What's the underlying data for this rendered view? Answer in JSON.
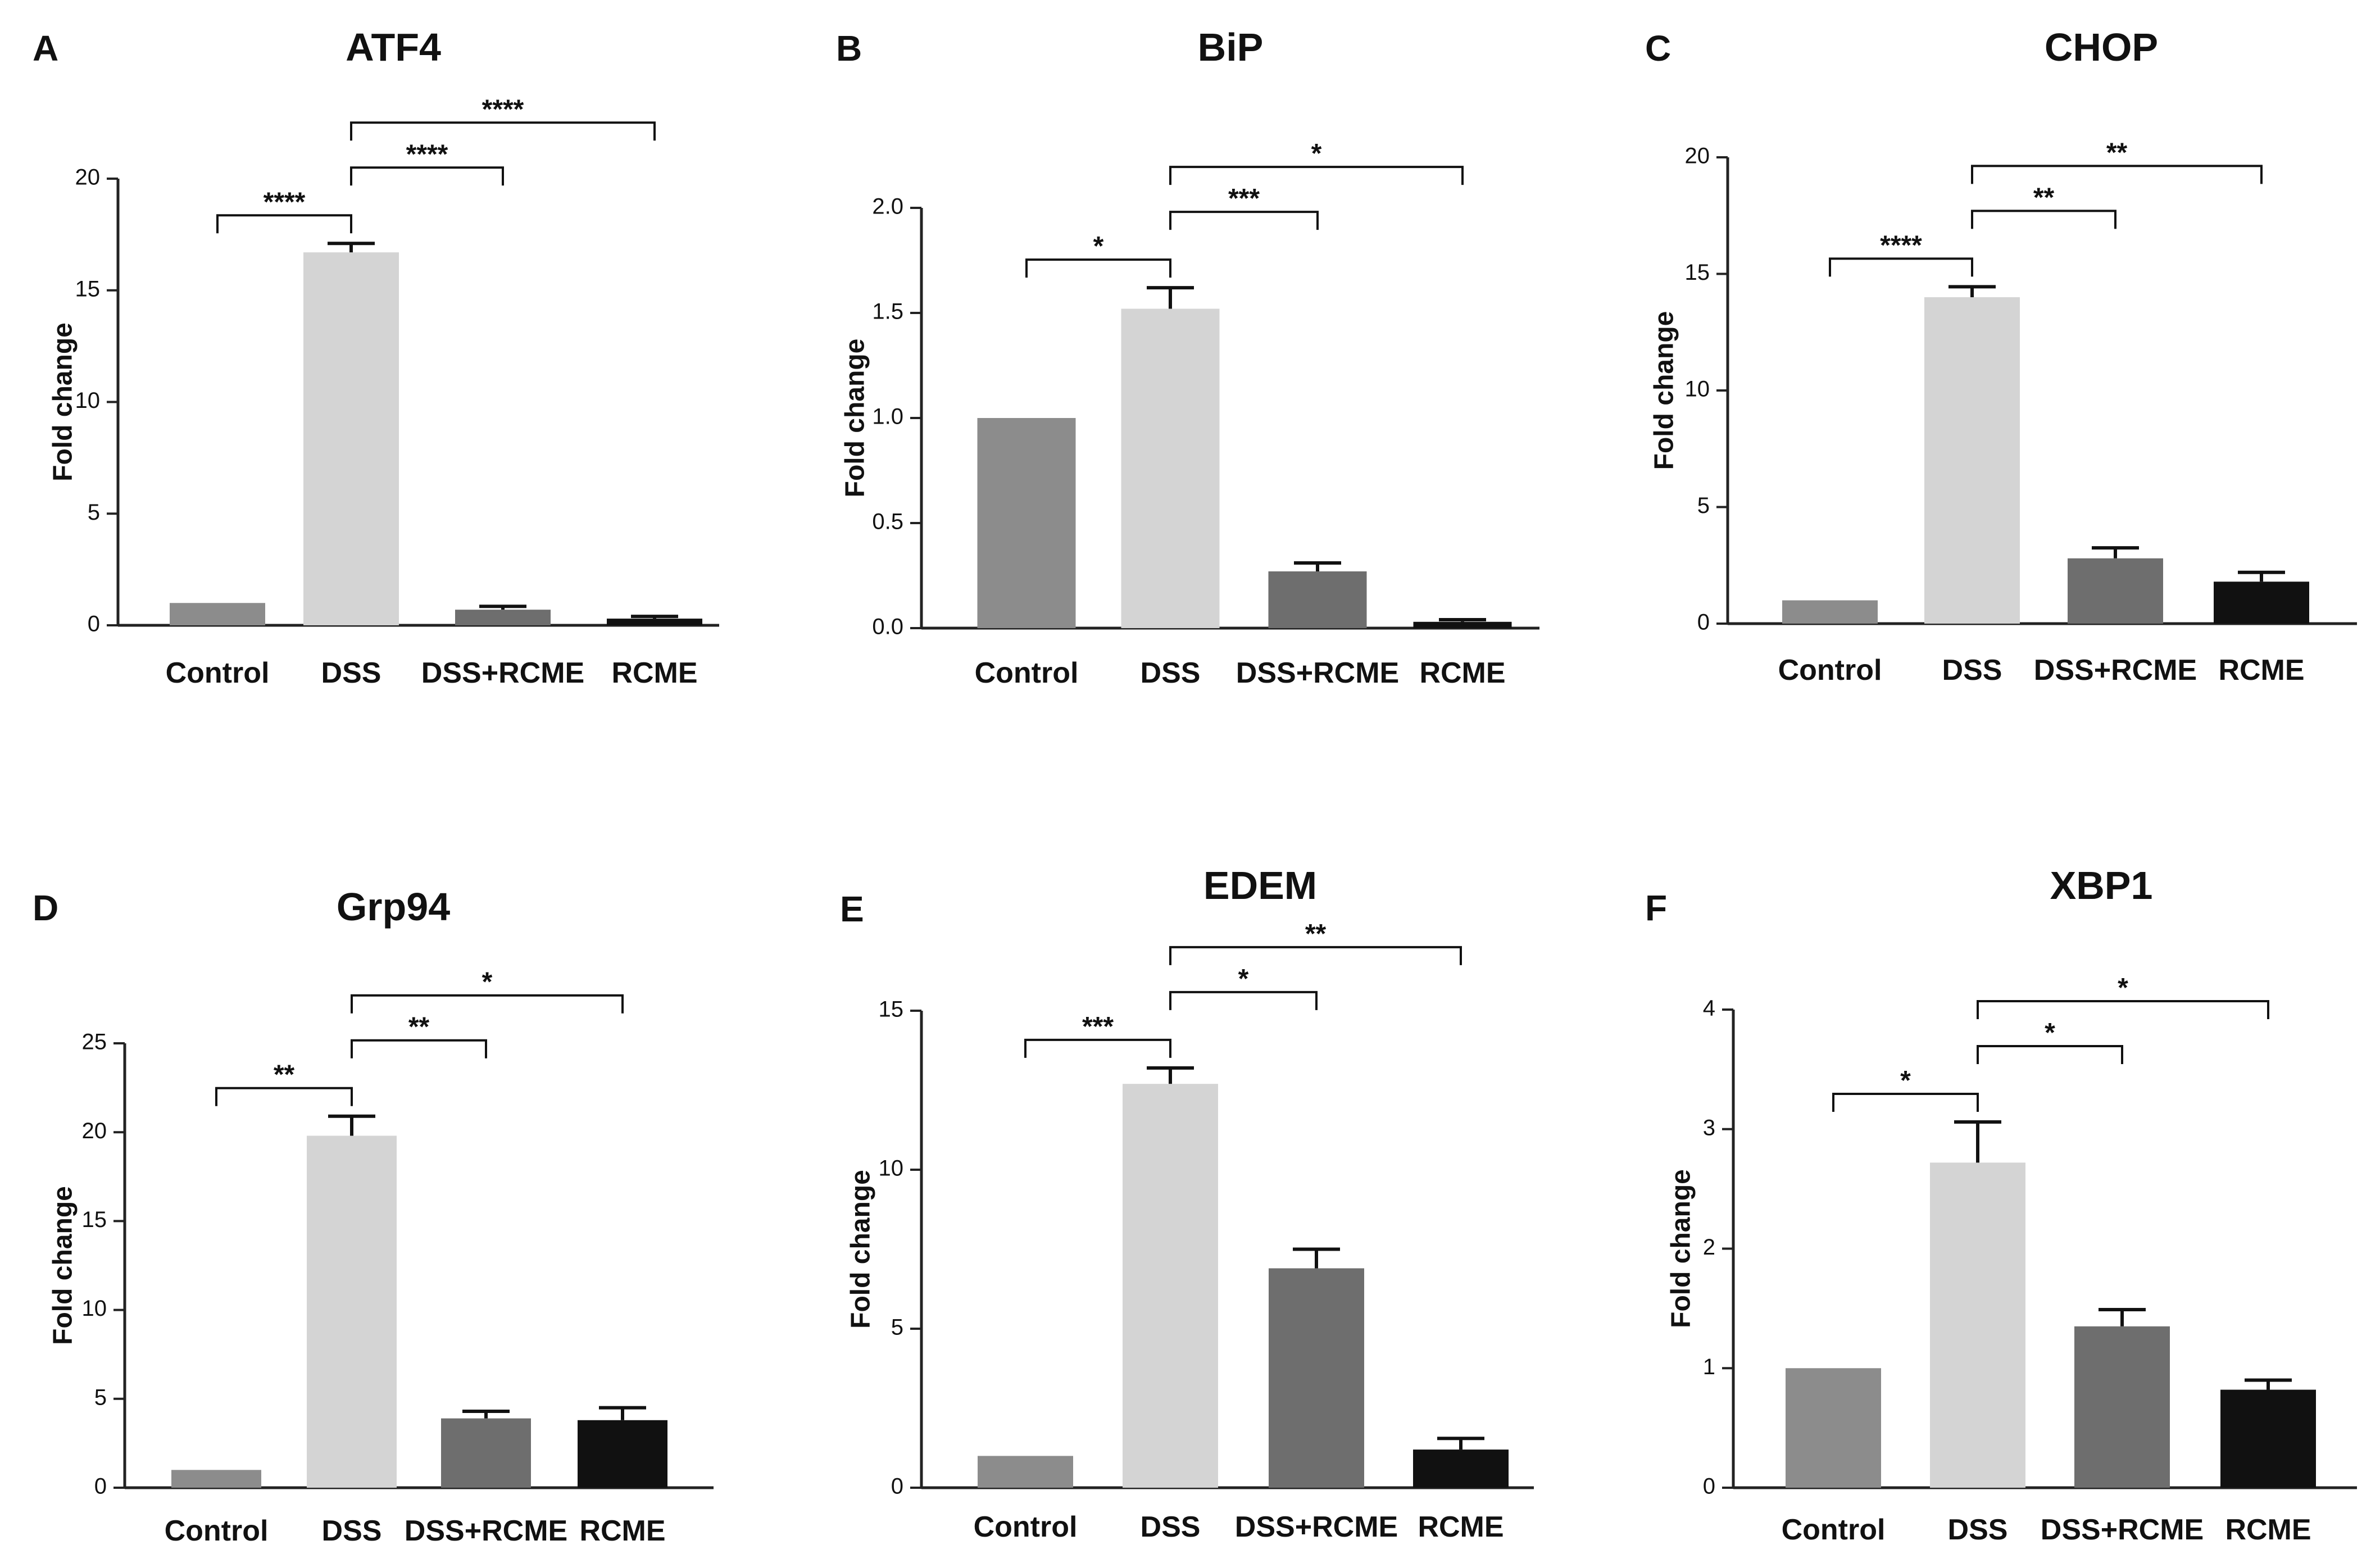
{
  "chart_data": [
    {
      "id": "A",
      "type": "bar",
      "title": "ATF4",
      "ylabel": "Fold change",
      "xlabel": "",
      "categories": [
        "Control",
        "DSS",
        "DSS+RCME",
        "RCME"
      ],
      "values": [
        1.0,
        16.7,
        0.7,
        0.3
      ],
      "errors": [
        0,
        0.4,
        0.15,
        0.1
      ],
      "colors": [
        "#8c8c8c",
        "#d4d4d4",
        "#6e6e6e",
        "#111111"
      ],
      "ylim": [
        0,
        20
      ],
      "yticks": [
        0,
        5,
        10,
        15,
        20
      ],
      "ytick_labels": [
        "0",
        "5",
        "10",
        "15",
        "20"
      ],
      "comparisons": [
        {
          "from": 0,
          "to": 1,
          "label": "****"
        },
        {
          "from": 1,
          "to": 2,
          "label": "****"
        },
        {
          "from": 1,
          "to": 3,
          "label": "****"
        }
      ]
    },
    {
      "id": "B",
      "type": "bar",
      "title": "BiP",
      "ylabel": "Fold change",
      "xlabel": "",
      "categories": [
        "Control",
        "DSS",
        "DSS+RCME",
        "RCME"
      ],
      "values": [
        1.0,
        1.52,
        0.27,
        0.03
      ],
      "errors": [
        0,
        0.1,
        0.04,
        0.01
      ],
      "colors": [
        "#8c8c8c",
        "#d4d4d4",
        "#6e6e6e",
        "#111111"
      ],
      "ylim": [
        0,
        2.0
      ],
      "yticks": [
        0,
        0.5,
        1.0,
        1.5,
        2.0
      ],
      "ytick_labels": [
        "0.0",
        "0.5",
        "1.0",
        "1.5",
        "2.0"
      ],
      "comparisons": [
        {
          "from": 0,
          "to": 1,
          "label": "*"
        },
        {
          "from": 1,
          "to": 2,
          "label": "***"
        },
        {
          "from": 1,
          "to": 3,
          "label": "*"
        }
      ]
    },
    {
      "id": "C",
      "type": "bar",
      "title": "CHOP",
      "ylabel": "Fold change",
      "xlabel": "",
      "categories": [
        "Control",
        "DSS",
        "DSS+RCME",
        "RCME"
      ],
      "values": [
        1.0,
        14.0,
        2.8,
        1.8
      ],
      "errors": [
        0,
        0.45,
        0.45,
        0.4
      ],
      "colors": [
        "#8c8c8c",
        "#d4d4d4",
        "#6e6e6e",
        "#111111"
      ],
      "ylim": [
        0,
        20
      ],
      "yticks": [
        0,
        5,
        10,
        15,
        20
      ],
      "ytick_labels": [
        "0",
        "5",
        "10",
        "15",
        "20"
      ],
      "comparisons": [
        {
          "from": 0,
          "to": 1,
          "label": "****"
        },
        {
          "from": 1,
          "to": 2,
          "label": "**"
        },
        {
          "from": 1,
          "to": 3,
          "label": "**"
        }
      ]
    },
    {
      "id": "D",
      "type": "bar",
      "title": "Grp94",
      "ylabel": "Fold change",
      "xlabel": "",
      "categories": [
        "Control",
        "DSS",
        "DSS+RCME",
        "RCME"
      ],
      "values": [
        1.0,
        19.8,
        3.9,
        3.8
      ],
      "errors": [
        0,
        1.1,
        0.4,
        0.7
      ],
      "colors": [
        "#8c8c8c",
        "#d4d4d4",
        "#6e6e6e",
        "#111111"
      ],
      "ylim": [
        0,
        25
      ],
      "yticks": [
        0,
        5,
        10,
        15,
        20,
        25
      ],
      "ytick_labels": [
        "0",
        "5",
        "10",
        "15",
        "20",
        "25"
      ],
      "comparisons": [
        {
          "from": 0,
          "to": 1,
          "label": "**"
        },
        {
          "from": 1,
          "to": 2,
          "label": "**"
        },
        {
          "from": 1,
          "to": 3,
          "label": "*"
        }
      ]
    },
    {
      "id": "E",
      "type": "bar",
      "title": "EDEM",
      "ylabel": "Fold change",
      "xlabel": "",
      "categories": [
        "Control",
        "DSS",
        "DSS+RCME",
        "RCME"
      ],
      "values": [
        1.0,
        12.7,
        6.9,
        1.2
      ],
      "errors": [
        0,
        0.5,
        0.6,
        0.35
      ],
      "colors": [
        "#8c8c8c",
        "#d4d4d4",
        "#6e6e6e",
        "#111111"
      ],
      "ylim": [
        0,
        15
      ],
      "yticks": [
        0,
        5,
        10,
        15
      ],
      "ytick_labels": [
        "0",
        "5",
        "10",
        "15"
      ],
      "comparisons": [
        {
          "from": 0,
          "to": 1,
          "label": "***"
        },
        {
          "from": 1,
          "to": 2,
          "label": "*"
        },
        {
          "from": 1,
          "to": 3,
          "label": "**"
        }
      ]
    },
    {
      "id": "F",
      "type": "bar",
      "title": "XBP1",
      "ylabel": "Fold change",
      "xlabel": "",
      "categories": [
        "Control",
        "DSS",
        "DSS+RCME",
        "RCME"
      ],
      "values": [
        1.0,
        2.72,
        1.35,
        0.82
      ],
      "errors": [
        0,
        0.34,
        0.14,
        0.08
      ],
      "colors": [
        "#8c8c8c",
        "#d4d4d4",
        "#6e6e6e",
        "#111111"
      ],
      "ylim": [
        0,
        4
      ],
      "yticks": [
        0,
        1,
        2,
        3,
        4
      ],
      "ytick_labels": [
        "0",
        "1",
        "2",
        "3",
        "4"
      ],
      "comparisons": [
        {
          "from": 0,
          "to": 1,
          "label": "*"
        },
        {
          "from": 1,
          "to": 2,
          "label": "*"
        },
        {
          "from": 1,
          "to": 3,
          "label": "*"
        }
      ]
    }
  ]
}
